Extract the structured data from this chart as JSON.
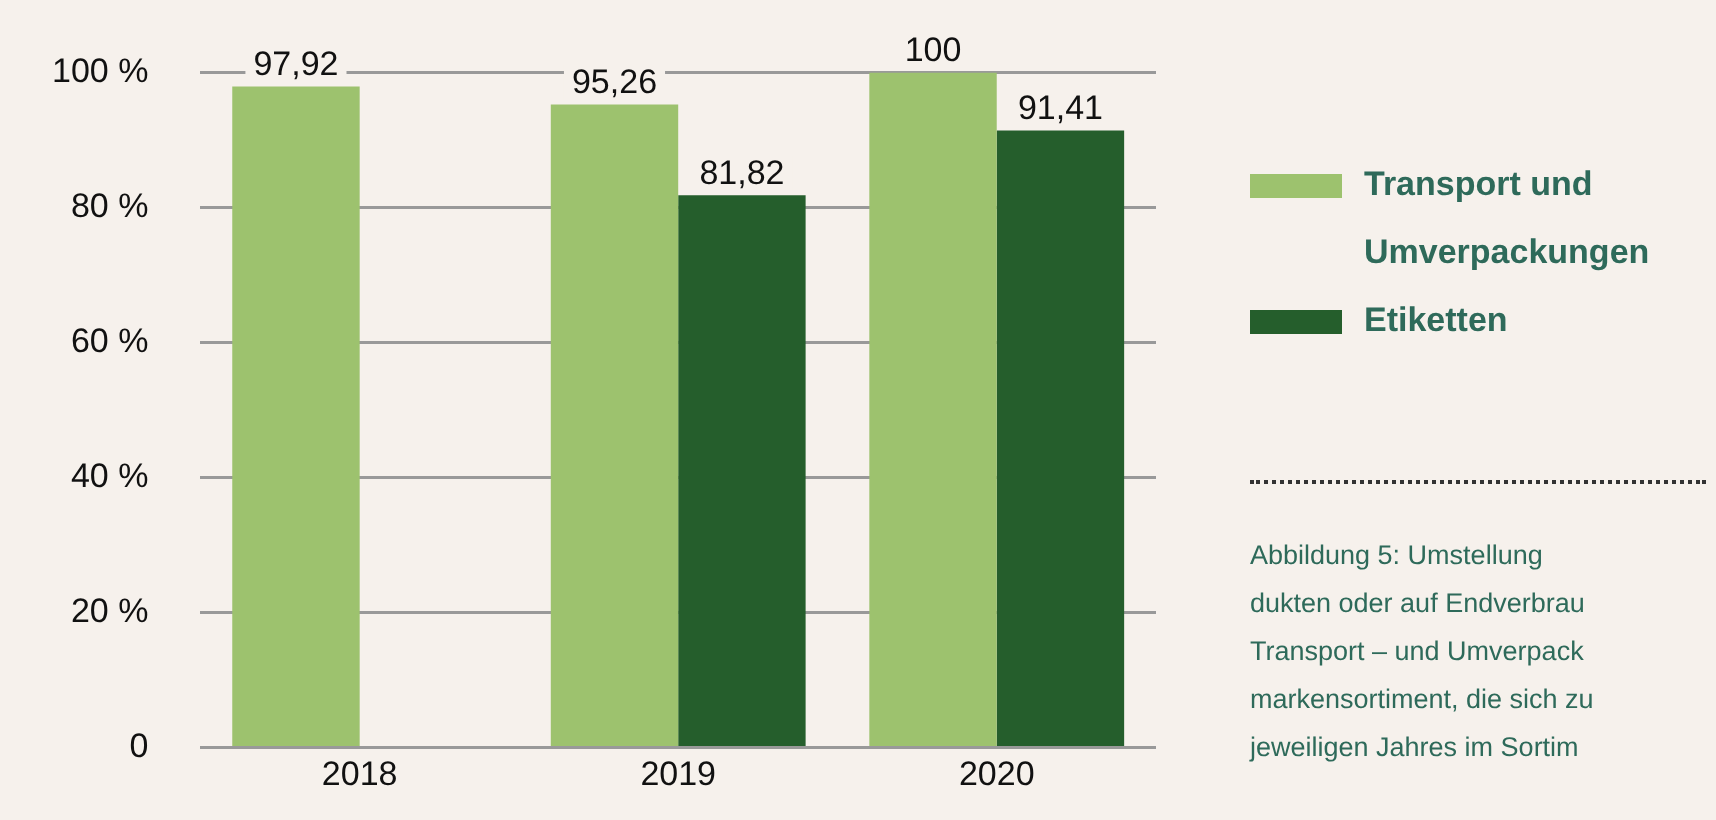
{
  "chart_data": {
    "type": "bar",
    "categories": [
      "2018",
      "2019",
      "2020"
    ],
    "series": [
      {
        "name": "Transport und Umverpackungen",
        "color": "#9dc26e",
        "values": [
          97.92,
          95.26,
          100
        ],
        "value_labels": [
          "97,92",
          "95,26",
          "100"
        ]
      },
      {
        "name": "Etiketten",
        "color": "#255e2c",
        "values": [
          null,
          81.82,
          91.41
        ],
        "value_labels": [
          null,
          "81,82",
          "91,41"
        ]
      }
    ],
    "ylim": [
      0,
      100
    ],
    "yticks": [
      0,
      {
        "value": 20,
        "label": "20 %"
      },
      {
        "value": 40,
        "label": "40 %"
      },
      {
        "value": 60,
        "label": "60 %"
      },
      {
        "value": 80,
        "label": "80 %"
      },
      {
        "value": 100,
        "label": "100 %"
      }
    ],
    "grid": "y",
    "legend": "right",
    "annotations": [
      "Abbildung 5: Umstellung",
      "dukten oder auf Endverbrau",
      "Transport – und Umverpack",
      "markensortiment, die sich zu",
      "jeweiligen Jahres im Sortim"
    ]
  }
}
